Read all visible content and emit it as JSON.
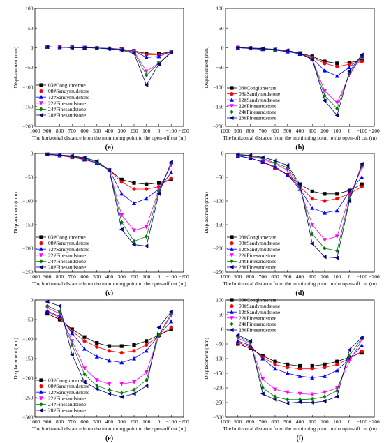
{
  "chart_data": [
    {
      "type": "line",
      "panel_label": "(a)",
      "xlabel": "The horizontal distance from the monitoring point to the open-off cut (m)",
      "ylabel": "Displacement (mm)",
      "xlim": [
        1000,
        -200
      ],
      "ylim": [
        -200,
        100
      ],
      "xticks": [
        1000,
        900,
        800,
        700,
        600,
        500,
        400,
        300,
        200,
        100,
        0,
        -100,
        -200
      ],
      "xtick_labels": [
        "1000",
        "900",
        "800",
        "700",
        "600",
        "500",
        "400",
        "300",
        "200",
        "100",
        "0",
        "−100",
        "−200"
      ],
      "yticks": [
        -200,
        -150,
        -100,
        -50,
        0,
        50,
        100
      ],
      "ytick_labels": [
        "−200",
        "−150",
        "−100",
        "−50",
        "0",
        "50",
        "100"
      ],
      "legend_position": "lower-left",
      "x": [
        900,
        800,
        700,
        600,
        500,
        400,
        300,
        200,
        100,
        0,
        -100
      ],
      "series": [
        {
          "name": "03#Conglomerate",
          "values": [
            2,
            1,
            1,
            0,
            -1,
            -2,
            -4,
            -8,
            -15,
            -16,
            -10
          ]
        },
        {
          "name": "08#Sandymudstone",
          "values": [
            2,
            1,
            1,
            0,
            -1,
            -2,
            -4,
            -8,
            -18,
            -18,
            -10
          ]
        },
        {
          "name": "12#Sandymudstone",
          "values": [
            2,
            1,
            1,
            0,
            -1,
            -2,
            -4,
            -8,
            -25,
            -22,
            -10
          ]
        },
        {
          "name": "22#Finesandstone",
          "values": [
            2,
            1,
            0,
            0,
            -1,
            -3,
            -5,
            -10,
            -60,
            -40,
            -10
          ]
        },
        {
          "name": "24#Finesandstone",
          "values": [
            2,
            1,
            0,
            0,
            -1,
            -3,
            -5,
            -12,
            -70,
            -40,
            -12
          ]
        },
        {
          "name": "28#Finesandstone",
          "values": [
            2,
            1,
            0,
            0,
            -1,
            -3,
            -6,
            -15,
            -95,
            -42,
            -12
          ]
        }
      ]
    },
    {
      "type": "line",
      "panel_label": "(b)",
      "xlabel": "The horizontal distance from the monitoring point to the open-off cut (m)",
      "ylabel": "Displacement (mm)",
      "xlim": [
        1000,
        -200
      ],
      "ylim": [
        -200,
        100
      ],
      "xticks": [
        1000,
        900,
        800,
        700,
        600,
        500,
        400,
        300,
        200,
        100,
        0,
        -100,
        -200
      ],
      "xtick_labels": [
        "1000",
        "900",
        "800",
        "700",
        "600",
        "500",
        "400",
        "300",
        "200",
        "100",
        "0",
        "−100",
        "−200"
      ],
      "yticks": [
        -200,
        -150,
        -100,
        -50,
        0,
        50,
        100
      ],
      "ytick_labels": [
        "−200",
        "−150",
        "−100",
        "−50",
        "0",
        "50",
        "100"
      ],
      "legend_position": "lower-left",
      "x": [
        900,
        800,
        700,
        600,
        500,
        400,
        300,
        200,
        100,
        0,
        -100
      ],
      "series": [
        {
          "name": "03#Conglomerate",
          "values": [
            0,
            -2,
            -4,
            -6,
            -10,
            -14,
            -22,
            -35,
            -40,
            -38,
            -32
          ]
        },
        {
          "name": "08#Sandymudstone",
          "values": [
            0,
            -2,
            -4,
            -6,
            -10,
            -15,
            -25,
            -40,
            -48,
            -42,
            -35
          ]
        },
        {
          "name": "12#Sandymudstone",
          "values": [
            0,
            -2,
            -4,
            -6,
            -10,
            -16,
            -28,
            -58,
            -72,
            -50,
            -22
          ]
        },
        {
          "name": "22#Finesandstone",
          "values": [
            0,
            -1,
            -3,
            -5,
            -8,
            -15,
            -30,
            -110,
            -140,
            -70,
            -20
          ]
        },
        {
          "name": "24#Finesandstone",
          "values": [
            0,
            -1,
            -3,
            -5,
            -8,
            -15,
            -30,
            -122,
            -155,
            -65,
            -20
          ]
        },
        {
          "name": "28#Finesandstone",
          "values": [
            0,
            -1,
            -2,
            -4,
            -7,
            -14,
            -30,
            -135,
            -172,
            -60,
            -18
          ]
        }
      ]
    },
    {
      "type": "line",
      "panel_label": "(c)",
      "xlabel": "The horizontal distance from the monitoring point to the open-off cut (m)",
      "ylabel": "Displacement (mm)",
      "xlim": [
        1000,
        -200
      ],
      "ylim": [
        -250,
        0
      ],
      "xticks": [
        1000,
        900,
        800,
        700,
        600,
        500,
        400,
        300,
        200,
        100,
        0,
        -100,
        -200
      ],
      "xtick_labels": [
        "1000",
        "900",
        "800",
        "700",
        "600",
        "500",
        "400",
        "300",
        "200",
        "100",
        "0",
        "−100",
        "−200"
      ],
      "yticks": [
        -250,
        -200,
        -150,
        -100,
        -50,
        0
      ],
      "ytick_labels": [
        "−250",
        "−200",
        "−150",
        "−100",
        "−50",
        "0"
      ],
      "legend_position": "lower-left",
      "x": [
        900,
        800,
        700,
        600,
        500,
        400,
        300,
        200,
        100,
        0,
        -100
      ],
      "series": [
        {
          "name": "03#Conglomerate",
          "values": [
            -2,
            -4,
            -8,
            -13,
            -20,
            -35,
            -55,
            -62,
            -65,
            -62,
            -55
          ]
        },
        {
          "name": "08#Sandymudstone",
          "values": [
            -2,
            -4,
            -8,
            -13,
            -20,
            -35,
            -60,
            -75,
            -75,
            -70,
            -52
          ]
        },
        {
          "name": "12#Sandymudstone",
          "values": [
            -2,
            -4,
            -7,
            -12,
            -20,
            -35,
            -85,
            -105,
            -95,
            -75,
            -40
          ]
        },
        {
          "name": "22#Finesandstone",
          "values": [
            -2,
            -3,
            -6,
            -10,
            -18,
            -35,
            -130,
            -162,
            -155,
            -75,
            -25
          ]
        },
        {
          "name": "24#Finesandstone",
          "values": [
            -2,
            -3,
            -6,
            -10,
            -18,
            -35,
            -145,
            -185,
            -175,
            -80,
            -20
          ]
        },
        {
          "name": "28#Finesandstone",
          "values": [
            -2,
            -3,
            -5,
            -9,
            -16,
            -35,
            -160,
            -192,
            -195,
            -85,
            -18
          ]
        }
      ]
    },
    {
      "type": "line",
      "panel_label": "(d)",
      "xlabel": "The horizontal distance from the monitoring point to the open-off cut (m)",
      "ylabel": "Displacement (mm)",
      "xlim": [
        1000,
        -200
      ],
      "ylim": [
        -250,
        0
      ],
      "xticks": [
        1000,
        900,
        800,
        700,
        600,
        500,
        400,
        300,
        200,
        100,
        0,
        -100,
        -200
      ],
      "xtick_labels": [
        "1000",
        "900",
        "800",
        "700",
        "600",
        "500",
        "400",
        "300",
        "200",
        "100",
        "0",
        "−100",
        "−200"
      ],
      "yticks": [
        -250,
        -200,
        -150,
        -100,
        -50,
        0
      ],
      "ytick_labels": [
        "−250",
        "−200",
        "−150",
        "−100",
        "−50",
        "0"
      ],
      "legend_position": "lower-left",
      "x": [
        900,
        800,
        700,
        600,
        500,
        400,
        300,
        200,
        100,
        0,
        -100
      ],
      "series": [
        {
          "name": "03#Conglomerate",
          "values": [
            -5,
            -10,
            -18,
            -30,
            -45,
            -65,
            -80,
            -85,
            -85,
            -78,
            -65
          ]
        },
        {
          "name": "08#Sandymudstone",
          "values": [
            -5,
            -10,
            -18,
            -30,
            -45,
            -70,
            -95,
            -100,
            -95,
            -85,
            -70
          ]
        },
        {
          "name": "12#Sandymudstone",
          "values": [
            -5,
            -10,
            -18,
            -28,
            -45,
            -75,
            -115,
            -125,
            -120,
            -80,
            -50
          ]
        },
        {
          "name": "22#Finesandstone",
          "values": [
            -3,
            -6,
            -12,
            -22,
            -35,
            -75,
            -150,
            -182,
            -175,
            -90,
            -30
          ]
        },
        {
          "name": "24#Finesandstone",
          "values": [
            -3,
            -5,
            -10,
            -20,
            -30,
            -70,
            -170,
            -200,
            -205,
            -95,
            -25
          ]
        },
        {
          "name": "28#Finesandstone",
          "values": [
            -2,
            -4,
            -8,
            -15,
            -25,
            -65,
            -190,
            -218,
            -220,
            -100,
            -22
          ]
        }
      ]
    },
    {
      "type": "line",
      "panel_label": "(e)",
      "xlabel": "The horizontal distance from the monitoring point to the open-off cut (m)",
      "ylabel": "Displacement (mm)",
      "xlim": [
        1000,
        -200
      ],
      "ylim": [
        -300,
        0
      ],
      "xticks": [
        1000,
        900,
        800,
        700,
        600,
        500,
        400,
        300,
        200,
        100,
        0,
        -100,
        -200
      ],
      "xtick_labels": [
        "1000",
        "900",
        "800",
        "700",
        "600",
        "500",
        "400",
        "300",
        "200",
        "100",
        "0",
        "−100",
        "−200"
      ],
      "yticks": [
        -300,
        -250,
        -200,
        -150,
        -100,
        -50,
        0
      ],
      "ytick_labels": [
        "−300",
        "−250",
        "−200",
        "−150",
        "−100",
        "−50",
        "0"
      ],
      "legend_position": "lower-left",
      "x": [
        900,
        800,
        700,
        600,
        500,
        400,
        300,
        200,
        100,
        0,
        -100
      ],
      "series": [
        {
          "name": "03#Conglomerate",
          "values": [
            -35,
            -50,
            -75,
            -95,
            -110,
            -118,
            -118,
            -115,
            -105,
            -90,
            -75
          ]
        },
        {
          "name": "08#Sandymudstone",
          "values": [
            -30,
            -45,
            -80,
            -105,
            -120,
            -130,
            -135,
            -130,
            -115,
            -92,
            -70
          ]
        },
        {
          "name": "12#Sandymudstone",
          "values": [
            -28,
            -42,
            -85,
            -125,
            -145,
            -155,
            -160,
            -150,
            -130,
            -90,
            -55
          ]
        },
        {
          "name": "22#Finesandstone",
          "values": [
            -20,
            -35,
            -105,
            -175,
            -205,
            -215,
            -215,
            -210,
            -185,
            -90,
            -40
          ]
        },
        {
          "name": "24#Finesandstone",
          "values": [
            -15,
            -30,
            -115,
            -190,
            -220,
            -230,
            -238,
            -230,
            -205,
            -90,
            -35
          ]
        },
        {
          "name": "28#Finesandstone",
          "values": [
            -5,
            -15,
            -140,
            -210,
            -228,
            -240,
            -248,
            -240,
            -220,
            -70,
            -30
          ]
        }
      ]
    },
    {
      "type": "line",
      "panel_label": "(f)",
      "xlabel": "The horizontal distance from the monitoring point to the open-off cut (m)",
      "ylabel": "Displacement (mm)",
      "xlim": [
        1000,
        -200
      ],
      "ylim": [
        -300,
        100
      ],
      "xticks": [
        1000,
        900,
        800,
        700,
        600,
        500,
        400,
        300,
        200,
        100,
        0,
        -100,
        -200
      ],
      "xtick_labels": [
        "1000",
        "900",
        "800",
        "700",
        "600",
        "500",
        "400",
        "300",
        "200",
        "100",
        "0",
        "−100",
        "−200"
      ],
      "yticks": [
        -300,
        -250,
        -200,
        -150,
        -100,
        -50,
        0,
        50,
        100
      ],
      "ytick_labels": [
        "−300",
        "−250",
        "−200",
        "−150",
        "−100",
        "−50",
        "0",
        "50",
        "100"
      ],
      "legend_position": "top-left",
      "x": [
        900,
        800,
        700,
        600,
        500,
        400,
        300,
        200,
        100,
        0,
        -100
      ],
      "series": [
        {
          "name": "03#Conglomerate",
          "values": [
            -50,
            -65,
            -90,
            -110,
            -120,
            -125,
            -125,
            -120,
            -110,
            -95,
            -80
          ]
        },
        {
          "name": "08#Sandymudstone",
          "values": [
            -45,
            -60,
            -95,
            -120,
            -130,
            -135,
            -135,
            -130,
            -120,
            -100,
            -75
          ]
        },
        {
          "name": "12#Sandymudstone",
          "values": [
            -40,
            -55,
            -100,
            -135,
            -150,
            -160,
            -165,
            -160,
            -140,
            -100,
            -55
          ]
        },
        {
          "name": "22#Finesandstone",
          "values": [
            -30,
            -50,
            -170,
            -205,
            -215,
            -220,
            -222,
            -215,
            -200,
            -110,
            -35
          ]
        },
        {
          "name": "24#Finesandstone",
          "values": [
            -25,
            -45,
            -200,
            -230,
            -240,
            -240,
            -238,
            -230,
            -210,
            -90,
            -30
          ]
        },
        {
          "name": "28#Finesandstone",
          "values": [
            -20,
            -40,
            -220,
            -240,
            -252,
            -248,
            -250,
            -245,
            -230,
            -70,
            -28
          ]
        }
      ]
    }
  ],
  "style": {
    "series_colors": [
      "#000000",
      "#ff0000",
      "#0000ff",
      "#ff00ff",
      "#008000",
      "#000080"
    ],
    "series_markers": [
      "square",
      "circle",
      "triangle-up",
      "triangle-down",
      "diamond",
      "triangle-left"
    ]
  }
}
